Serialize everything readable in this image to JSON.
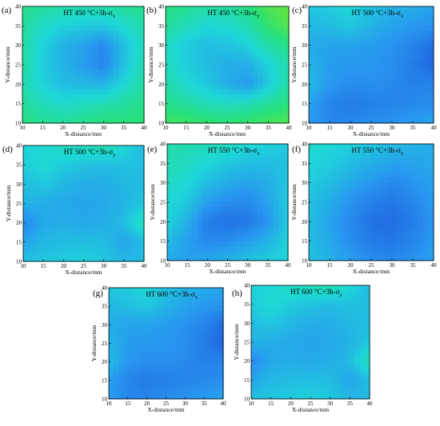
{
  "figure": {
    "panels": [
      {
        "letter": "(a)",
        "title": "HT 450 °C+3h-σx"
      },
      {
        "letter": "(b)",
        "title": "HT 450 °C+3h-σy"
      },
      {
        "letter": "(c)",
        "title": "HT 500 °C+3h-σx"
      },
      {
        "letter": "(d)",
        "title": "HT 500 °C+3h-σy"
      },
      {
        "letter": "(e)",
        "title": "HT 550 °C+3h-σx"
      },
      {
        "letter": "(f)",
        "title": "HT 550 °C+3h-σy"
      },
      {
        "letter": "(g)",
        "title": "HT 600 °C+3h-σx"
      },
      {
        "letter": "(h)",
        "title": "HT 600 °C+3h-σy"
      }
    ]
  },
  "chart_data": [
    {
      "panel": "(a)",
      "type": "heatmap",
      "title": "HT 450 °C+3h-σx",
      "xlabel": "X-distance/mm",
      "ylabel": "Y-distance/mm",
      "x": [
        10,
        15,
        20,
        25,
        30,
        35,
        40
      ],
      "y": [
        10,
        15,
        20,
        25,
        30,
        35,
        40
      ],
      "xlim": [
        10,
        40
      ],
      "ylim": [
        10,
        40
      ],
      "grid_values": [
        [
          0.7,
          0.66,
          0.62,
          0.6,
          0.62,
          0.66,
          0.7
        ],
        [
          0.66,
          0.55,
          0.48,
          0.45,
          0.44,
          0.52,
          0.62
        ],
        [
          0.64,
          0.48,
          0.36,
          0.3,
          0.2,
          0.4,
          0.58
        ],
        [
          0.64,
          0.46,
          0.36,
          0.28,
          0.18,
          0.42,
          0.6
        ],
        [
          0.62,
          0.48,
          0.4,
          0.38,
          0.36,
          0.5,
          0.64
        ],
        [
          0.66,
          0.58,
          0.52,
          0.56,
          0.6,
          0.64,
          0.7
        ],
        [
          0.72,
          0.68,
          0.66,
          0.7,
          0.74,
          0.74,
          0.76
        ]
      ]
    },
    {
      "panel": "(b)",
      "type": "heatmap",
      "title": "HT 450 °C+3h-σy",
      "xlabel": "X-distance/mm",
      "ylabel": "Y-distance/mm",
      "x": [
        10,
        15,
        20,
        25,
        30,
        35,
        40
      ],
      "y": [
        10,
        15,
        20,
        25,
        30,
        35,
        40
      ],
      "xlim": [
        10,
        40
      ],
      "ylim": [
        10,
        40
      ],
      "grid_values": [
        [
          0.72,
          0.68,
          0.64,
          0.66,
          0.72,
          0.86,
          0.92
        ],
        [
          0.66,
          0.58,
          0.5,
          0.52,
          0.6,
          0.78,
          0.88
        ],
        [
          0.56,
          0.46,
          0.4,
          0.42,
          0.48,
          0.62,
          0.72
        ],
        [
          0.58,
          0.46,
          0.4,
          0.34,
          0.34,
          0.48,
          0.62
        ],
        [
          0.62,
          0.52,
          0.44,
          0.34,
          0.26,
          0.44,
          0.64
        ],
        [
          0.7,
          0.64,
          0.58,
          0.56,
          0.58,
          0.66,
          0.74
        ],
        [
          0.82,
          0.82,
          0.78,
          0.76,
          0.8,
          0.84,
          0.86
        ]
      ]
    },
    {
      "panel": "(c)",
      "type": "heatmap",
      "title": "HT 500 °C+3h-σx",
      "xlabel": "X-distance/mm",
      "ylabel": "Y-distance/mm",
      "x": [
        10,
        15,
        20,
        25,
        30,
        35,
        40
      ],
      "y": [
        10,
        15,
        20,
        25,
        30,
        35,
        40
      ],
      "xlim": [
        10,
        40
      ],
      "ylim": [
        10,
        40
      ],
      "grid_values": [
        [
          0.44,
          0.46,
          0.5,
          0.42,
          0.36,
          0.34,
          0.3
        ],
        [
          0.38,
          0.4,
          0.44,
          0.36,
          0.3,
          0.26,
          0.24
        ],
        [
          0.34,
          0.3,
          0.3,
          0.28,
          0.24,
          0.18,
          0.08
        ],
        [
          0.36,
          0.28,
          0.26,
          0.26,
          0.22,
          0.14,
          0.06
        ],
        [
          0.4,
          0.26,
          0.22,
          0.22,
          0.2,
          0.16,
          0.18
        ],
        [
          0.3,
          0.18,
          0.14,
          0.16,
          0.18,
          0.2,
          0.22
        ],
        [
          0.26,
          0.2,
          0.18,
          0.22,
          0.24,
          0.28,
          0.3
        ]
      ]
    },
    {
      "panel": "(d)",
      "type": "heatmap",
      "title": "HT 500 °C+3h-σy",
      "xlabel": "X-distance/mm",
      "ylabel": "Y-distance/mm",
      "x": [
        10,
        15,
        20,
        25,
        30,
        35,
        40
      ],
      "y": [
        10,
        15,
        20,
        25,
        30,
        35,
        40
      ],
      "xlim": [
        10,
        40
      ],
      "ylim": [
        10,
        40
      ],
      "grid_values": [
        [
          0.48,
          0.5,
          0.56,
          0.58,
          0.62,
          0.5,
          0.4
        ],
        [
          0.46,
          0.52,
          0.46,
          0.42,
          0.4,
          0.42,
          0.4
        ],
        [
          0.4,
          0.44,
          0.38,
          0.34,
          0.34,
          0.38,
          0.4
        ],
        [
          0.36,
          0.34,
          0.32,
          0.3,
          0.32,
          0.36,
          0.44
        ],
        [
          0.2,
          0.32,
          0.34,
          0.32,
          0.34,
          0.4,
          0.6
        ],
        [
          0.3,
          0.38,
          0.4,
          0.4,
          0.4,
          0.3,
          0.4
        ],
        [
          0.42,
          0.44,
          0.46,
          0.48,
          0.44,
          0.38,
          0.4
        ]
      ]
    },
    {
      "panel": "(e)",
      "type": "heatmap",
      "title": "HT 550 °C+3h-σx",
      "xlabel": "X-distance/mm",
      "ylabel": "Y-distance/mm",
      "x": [
        10,
        15,
        20,
        25,
        30,
        35,
        40
      ],
      "y": [
        10,
        15,
        20,
        25,
        30,
        35,
        40
      ],
      "xlim": [
        10,
        40
      ],
      "ylim": [
        10,
        40
      ],
      "grid_values": [
        [
          0.62,
          0.6,
          0.58,
          0.56,
          0.52,
          0.48,
          0.44
        ],
        [
          0.6,
          0.56,
          0.5,
          0.44,
          0.4,
          0.4,
          0.42
        ],
        [
          0.56,
          0.5,
          0.4,
          0.34,
          0.3,
          0.34,
          0.44
        ],
        [
          0.52,
          0.44,
          0.28,
          0.22,
          0.2,
          0.3,
          0.46
        ],
        [
          0.48,
          0.36,
          0.14,
          0.1,
          0.12,
          0.24,
          0.46
        ],
        [
          0.4,
          0.28,
          0.2,
          0.22,
          0.28,
          0.36,
          0.48
        ],
        [
          0.32,
          0.3,
          0.32,
          0.36,
          0.42,
          0.46,
          0.5
        ]
      ]
    },
    {
      "panel": "(f)",
      "type": "heatmap",
      "title": "HT 550 °C+3h-σy",
      "xlabel": "X-distance/mm",
      "ylabel": "Y-distance/mm",
      "x": [
        10,
        15,
        20,
        25,
        30,
        35,
        40
      ],
      "y": [
        10,
        15,
        20,
        25,
        30,
        35,
        40
      ],
      "xlim": [
        10,
        40
      ],
      "ylim": [
        10,
        40
      ],
      "grid_values": [
        [
          0.54,
          0.5,
          0.48,
          0.44,
          0.4,
          0.36,
          0.34
        ],
        [
          0.5,
          0.46,
          0.4,
          0.34,
          0.3,
          0.3,
          0.32
        ],
        [
          0.46,
          0.4,
          0.32,
          0.26,
          0.2,
          0.24,
          0.3
        ],
        [
          0.42,
          0.34,
          0.24,
          0.16,
          0.12,
          0.18,
          0.28
        ],
        [
          0.4,
          0.3,
          0.2,
          0.1,
          0.08,
          0.14,
          0.26
        ],
        [
          0.4,
          0.32,
          0.22,
          0.14,
          0.12,
          0.18,
          0.28
        ],
        [
          0.42,
          0.36,
          0.28,
          0.22,
          0.2,
          0.24,
          0.3
        ]
      ]
    },
    {
      "panel": "(g)",
      "type": "heatmap",
      "title": "HT 600 °C+3h-σx",
      "xlabel": "X-distance/mm",
      "ylabel": "Y-distance/mm",
      "x": [
        10,
        15,
        20,
        25,
        30,
        35,
        40
      ],
      "y": [
        10,
        15,
        20,
        25,
        30,
        35,
        40
      ],
      "xlim": [
        10,
        40
      ],
      "ylim": [
        10,
        40
      ],
      "grid_values": [
        [
          0.44,
          0.46,
          0.5,
          0.42,
          0.36,
          0.34,
          0.3
        ],
        [
          0.38,
          0.4,
          0.44,
          0.36,
          0.3,
          0.26,
          0.24
        ],
        [
          0.34,
          0.3,
          0.3,
          0.28,
          0.24,
          0.18,
          0.08
        ],
        [
          0.36,
          0.28,
          0.26,
          0.26,
          0.22,
          0.14,
          0.06
        ],
        [
          0.4,
          0.26,
          0.22,
          0.22,
          0.2,
          0.16,
          0.18
        ],
        [
          0.3,
          0.18,
          0.14,
          0.16,
          0.18,
          0.2,
          0.22
        ],
        [
          0.26,
          0.2,
          0.18,
          0.22,
          0.24,
          0.28,
          0.3
        ]
      ]
    },
    {
      "panel": "(h)",
      "type": "heatmap",
      "title": "HT 600 °C+3h-σy",
      "xlabel": "X-distance/mm",
      "ylabel": "Y-distance/mm",
      "x": [
        10,
        15,
        20,
        25,
        30,
        35,
        40
      ],
      "y": [
        10,
        15,
        20,
        25,
        30,
        35,
        40
      ],
      "xlim": [
        10,
        40
      ],
      "ylim": [
        10,
        40
      ],
      "grid_values": [
        [
          0.48,
          0.5,
          0.56,
          0.58,
          0.62,
          0.5,
          0.4
        ],
        [
          0.46,
          0.52,
          0.46,
          0.42,
          0.4,
          0.42,
          0.4
        ],
        [
          0.4,
          0.44,
          0.38,
          0.34,
          0.34,
          0.38,
          0.4
        ],
        [
          0.36,
          0.34,
          0.32,
          0.3,
          0.32,
          0.36,
          0.44
        ],
        [
          0.2,
          0.32,
          0.34,
          0.32,
          0.34,
          0.4,
          0.6
        ],
        [
          0.3,
          0.38,
          0.4,
          0.4,
          0.4,
          0.3,
          0.4
        ],
        [
          0.42,
          0.44,
          0.46,
          0.48,
          0.44,
          0.38,
          0.4
        ]
      ]
    }
  ]
}
